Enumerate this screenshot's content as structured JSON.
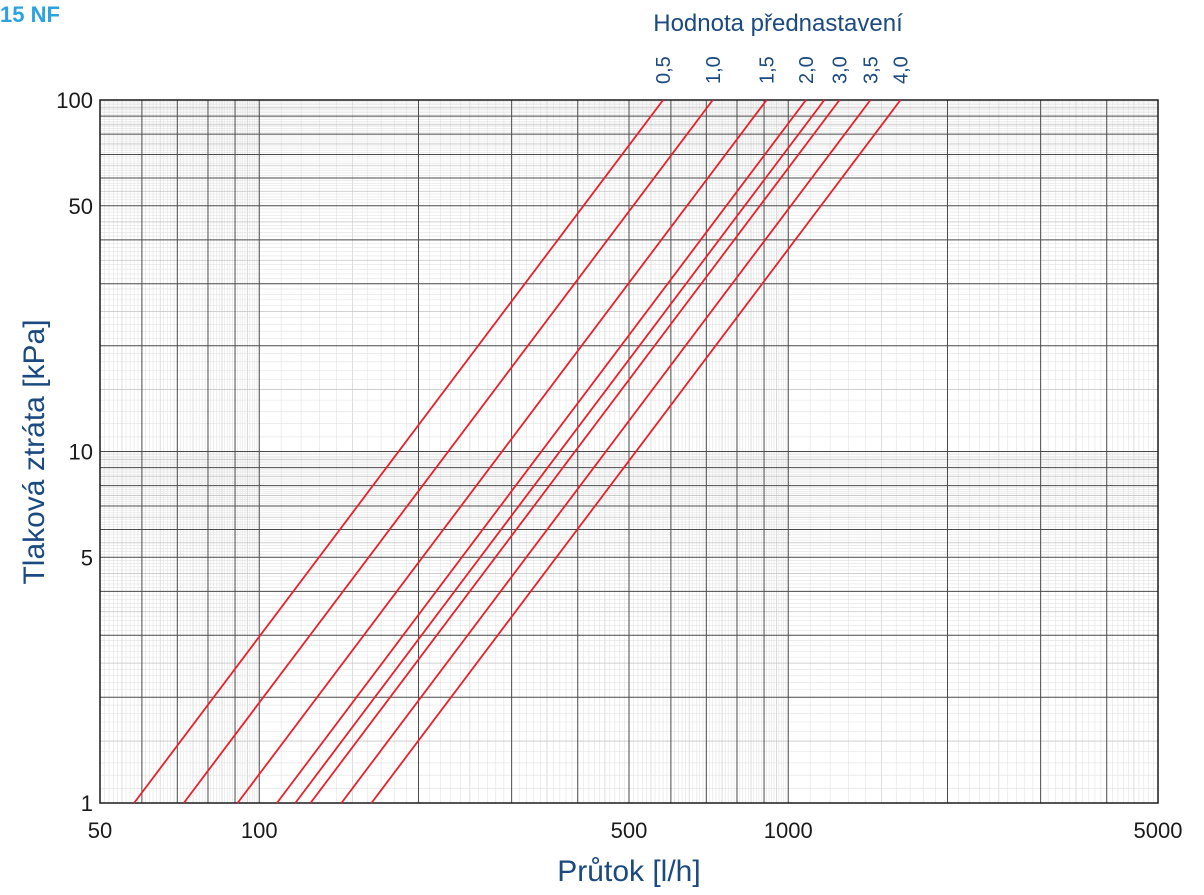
{
  "corner_label": "15 NF",
  "chart_data": {
    "type": "line",
    "title": "Hodnota přednastavení",
    "xlabel": "Průtok  [l/h]",
    "ylabel": "Tlaková ztráta  [kPa]",
    "x_scale": "log",
    "y_scale": "log",
    "xlim": [
      50,
      5000
    ],
    "ylim": [
      1,
      100
    ],
    "grid": true,
    "x_ticks": [
      {
        "value": 50,
        "label": "50"
      },
      {
        "value": 100,
        "label": "100"
      },
      {
        "value": 500,
        "label": "500"
      },
      {
        "value": 1000,
        "label": "1000"
      },
      {
        "value": 5000,
        "label": "5000"
      }
    ],
    "y_ticks": [
      {
        "value": 1,
        "label": "1"
      },
      {
        "value": 5,
        "label": "5"
      },
      {
        "value": 10,
        "label": "10"
      },
      {
        "value": 50,
        "label": "50"
      },
      {
        "value": 100,
        "label": "100"
      }
    ],
    "series_color": "#e8202a",
    "series": [
      {
        "name": "0,5",
        "points": [
          [
            58,
            1
          ],
          [
            580,
            100
          ]
        ]
      },
      {
        "name": "1,0",
        "points": [
          [
            72,
            1
          ],
          [
            720,
            100
          ]
        ]
      },
      {
        "name": "1,5",
        "points": [
          [
            91,
            1
          ],
          [
            910,
            100
          ]
        ]
      },
      {
        "name": "2,0",
        "points": [
          [
            108,
            1
          ],
          [
            1080,
            100
          ]
        ]
      },
      {
        "name": "",
        "points": [
          [
            117,
            1
          ],
          [
            1170,
            100
          ]
        ]
      },
      {
        "name": "3,0",
        "points": [
          [
            125,
            1
          ],
          [
            1250,
            100
          ]
        ]
      },
      {
        "name": "3,5",
        "points": [
          [
            143,
            1
          ],
          [
            1430,
            100
          ]
        ]
      },
      {
        "name": "4,0",
        "points": [
          [
            163,
            1
          ],
          [
            1630,
            100
          ]
        ]
      }
    ]
  }
}
